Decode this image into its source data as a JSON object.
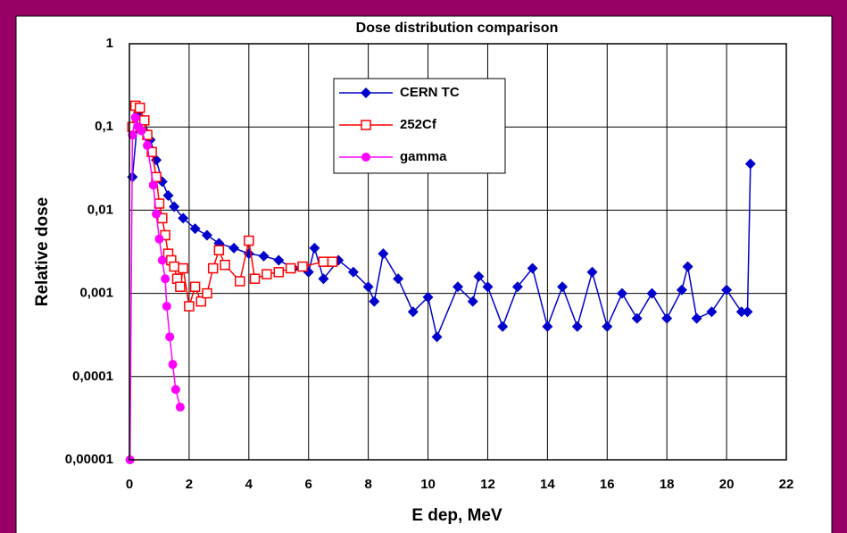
{
  "chart_data": {
    "type": "line",
    "title": "Dose distribution comparison",
    "x_label": "E dep, MeV",
    "y_label": "Relative dose",
    "xlim": [
      0,
      22
    ],
    "xticks": [
      0,
      2,
      4,
      6,
      8,
      10,
      12,
      14,
      16,
      18,
      20,
      22
    ],
    "ylim": [
      1e-05,
      1
    ],
    "y_log": true,
    "yticks": [
      {
        "value": 1e-05,
        "label": "0,00001"
      },
      {
        "value": 0.0001,
        "label": "0,0001"
      },
      {
        "value": 0.001,
        "label": "0,001"
      },
      {
        "value": 0.01,
        "label": "0,01"
      },
      {
        "value": 0.1,
        "label": "0,1"
      },
      1
    ],
    "grid": true,
    "series": [
      {
        "name": "CERN TC",
        "color": "#0000cc",
        "marker": "diamond",
        "x": [
          0.1,
          0.3,
          0.5,
          0.7,
          0.9,
          1.1,
          1.3,
          1.5,
          1.8,
          2.2,
          2.6,
          3,
          3.5,
          4,
          4.5,
          5,
          5.5,
          6,
          6.2,
          6.5,
          7,
          7.5,
          8,
          8.2,
          8.5,
          9,
          9.5,
          10,
          10.3,
          11,
          11.5,
          11.7,
          12,
          12.5,
          13,
          13.5,
          14,
          14.5,
          15,
          15.5,
          16,
          16.5,
          17,
          17.5,
          18,
          18.5,
          18.7,
          19,
          19.5,
          20,
          20.5,
          20.7,
          20.8
        ],
        "values": [
          0.025,
          0.15,
          0.12,
          0.07,
          0.04,
          0.022,
          0.015,
          0.011,
          0.008,
          0.006,
          0.005,
          0.004,
          0.0035,
          0.003,
          0.0028,
          0.0025,
          0.002,
          0.0018,
          0.0035,
          0.0015,
          0.0025,
          0.0018,
          0.0012,
          0.0008,
          0.003,
          0.0015,
          0.0006,
          0.0009,
          0.0003,
          0.0012,
          0.0008,
          0.0016,
          0.0012,
          0.0004,
          0.0012,
          0.002,
          0.0004,
          0.0012,
          0.0004,
          0.0018,
          0.0004,
          0.001,
          0.0005,
          0.001,
          0.0005,
          0.0011,
          0.0021,
          0.0005,
          0.0006,
          0.0011,
          0.0006,
          0.0006,
          0.036
        ]
      },
      {
        "name": "252Cf",
        "color": "#ff0000",
        "marker": "square",
        "x": [
          0.1,
          0.2,
          0.35,
          0.5,
          0.6,
          0.75,
          0.9,
          1,
          1.1,
          1.2,
          1.3,
          1.4,
          1.5,
          1.6,
          1.7,
          1.8,
          2,
          2.2,
          2.4,
          2.6,
          2.8,
          3,
          3.2,
          3.7,
          4,
          4.2,
          4.6,
          5,
          5.4,
          5.8,
          6.5,
          6.8
        ],
        "values": [
          0.1,
          0.18,
          0.17,
          0.12,
          0.08,
          0.05,
          0.025,
          0.012,
          0.008,
          0.005,
          0.003,
          0.0025,
          0.0021,
          0.0015,
          0.0012,
          0.002,
          0.0007,
          0.0012,
          0.0008,
          0.001,
          0.002,
          0.0033,
          0.0022,
          0.0014,
          0.0043,
          0.0015,
          0.0017,
          0.0018,
          0.002,
          0.0021,
          0.0024,
          0.0024
        ]
      },
      {
        "name": "gamma",
        "color": "#ff00ff",
        "marker": "circle",
        "x": [
          0.02,
          0.1,
          0.2,
          0.3,
          0.4,
          0.6,
          0.8,
          0.9,
          1,
          1.1,
          1.2,
          1.25,
          1.35,
          1.45,
          1.55,
          1.7
        ],
        "values": [
          1e-05,
          0.08,
          0.13,
          0.1,
          0.09,
          0.06,
          0.02,
          0.009,
          0.0045,
          0.0025,
          0.0015,
          0.0007,
          0.0003,
          0.00014,
          7e-05,
          4.3e-05
        ]
      }
    ]
  }
}
